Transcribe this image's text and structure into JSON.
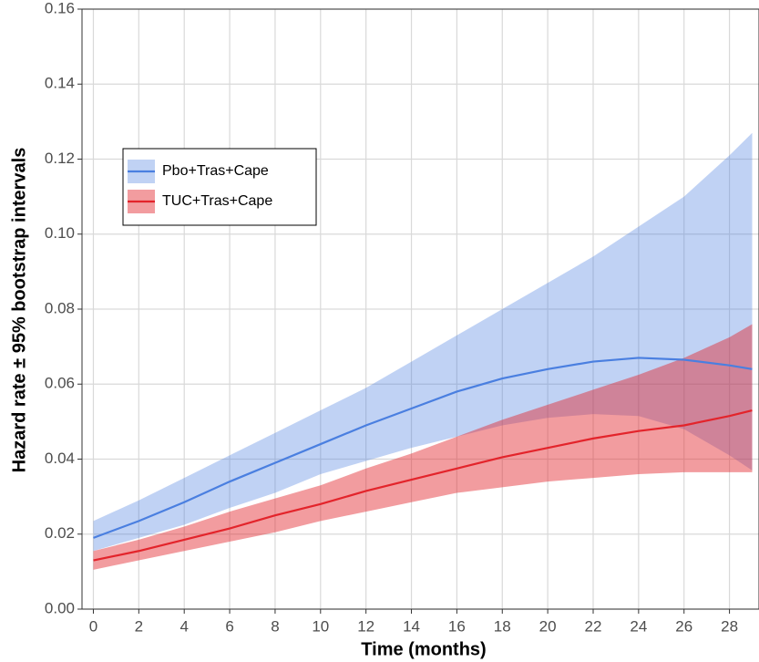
{
  "chart_data": {
    "type": "line",
    "x_label": "Time (months)",
    "y_label": "Hazard rate ± 95% bootstrap intervals",
    "x": [
      0,
      2,
      4,
      6,
      8,
      10,
      12,
      14,
      16,
      18,
      20,
      22,
      24,
      26,
      28,
      29
    ],
    "series": [
      {
        "name": "Pbo+Tras+Cape",
        "color": "#4a7fe0",
        "values": [
          0.019,
          0.0235,
          0.0285,
          0.034,
          0.039,
          0.044,
          0.049,
          0.0535,
          0.058,
          0.0615,
          0.064,
          0.066,
          0.067,
          0.0665,
          0.065,
          0.064
        ],
        "lower": [
          0.0155,
          0.019,
          0.0225,
          0.027,
          0.031,
          0.036,
          0.0395,
          0.043,
          0.046,
          0.049,
          0.051,
          0.052,
          0.0515,
          0.048,
          0.041,
          0.037
        ],
        "upper": [
          0.0235,
          0.029,
          0.035,
          0.041,
          0.047,
          0.053,
          0.059,
          0.066,
          0.073,
          0.08,
          0.087,
          0.094,
          0.102,
          0.11,
          0.121,
          0.127
        ]
      },
      {
        "name": "TUC+Tras+Cape",
        "color": "#e3242b",
        "values": [
          0.013,
          0.0155,
          0.0185,
          0.0215,
          0.025,
          0.028,
          0.0315,
          0.0345,
          0.0375,
          0.0405,
          0.043,
          0.0455,
          0.0475,
          0.049,
          0.0515,
          0.053
        ],
        "lower": [
          0.0105,
          0.013,
          0.0155,
          0.018,
          0.0205,
          0.0235,
          0.026,
          0.0285,
          0.031,
          0.0325,
          0.034,
          0.035,
          0.036,
          0.0365,
          0.0365,
          0.0365
        ],
        "upper": [
          0.0155,
          0.0185,
          0.022,
          0.026,
          0.0295,
          0.033,
          0.0375,
          0.0415,
          0.046,
          0.0505,
          0.0545,
          0.0585,
          0.0625,
          0.067,
          0.0725,
          0.076
        ]
      }
    ],
    "xlim": [
      -0.5,
      29.3
    ],
    "ylim": [
      0,
      0.16
    ],
    "xticks": [
      0,
      2,
      4,
      6,
      8,
      10,
      12,
      14,
      16,
      18,
      20,
      22,
      24,
      26,
      28
    ],
    "yticks": [
      {
        "value": 0,
        "label": "0.00"
      },
      {
        "value": 0.02,
        "label": "0.02"
      },
      {
        "value": 0.04,
        "label": "0.04"
      },
      {
        "value": 0.06,
        "label": "0.06"
      },
      {
        "value": 0.08,
        "label": "0.08"
      },
      {
        "value": 0.1,
        "label": "0.10"
      },
      {
        "value": 0.12,
        "label": "0.12"
      },
      {
        "value": 0.14,
        "label": "0.14"
      },
      {
        "value": 0.16,
        "label": "0.16"
      }
    ],
    "grid": true,
    "legend": "upper-left"
  }
}
